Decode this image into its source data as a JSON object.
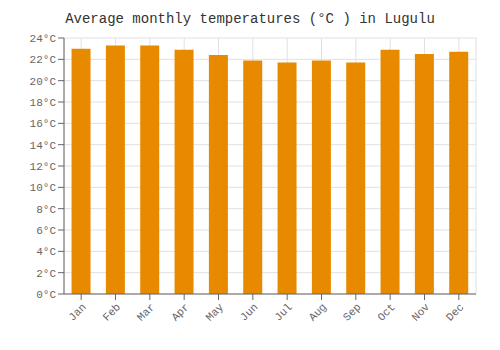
{
  "chart_data": {
    "type": "bar",
    "title": "Average monthly temperatures (°C ) in Lugulu",
    "categories": [
      "Jan",
      "Feb",
      "Mar",
      "Apr",
      "May",
      "Jun",
      "Jul",
      "Aug",
      "Sep",
      "Oct",
      "Nov",
      "Dec"
    ],
    "values": [
      23.0,
      23.3,
      23.3,
      22.9,
      22.4,
      21.9,
      21.7,
      21.9,
      21.7,
      22.9,
      22.5,
      22.7
    ],
    "color": "#E88A00",
    "ylim": [
      0,
      24
    ],
    "yticks": [
      {
        "value": 0,
        "label": "0°C"
      },
      {
        "value": 2,
        "label": "2°C"
      },
      {
        "value": 4,
        "label": "4°C"
      },
      {
        "value": 6,
        "label": "6°C"
      },
      {
        "value": 8,
        "label": "8°C"
      },
      {
        "value": 10,
        "label": "10°C"
      },
      {
        "value": 12,
        "label": "12°C"
      },
      {
        "value": 14,
        "label": "14°C"
      },
      {
        "value": 16,
        "label": "16°C"
      },
      {
        "value": 18,
        "label": "18°C"
      },
      {
        "value": 20,
        "label": "20°C"
      },
      {
        "value": 22,
        "label": "22°C"
      },
      {
        "value": 24,
        "label": "24°C"
      }
    ],
    "grid": true
  }
}
